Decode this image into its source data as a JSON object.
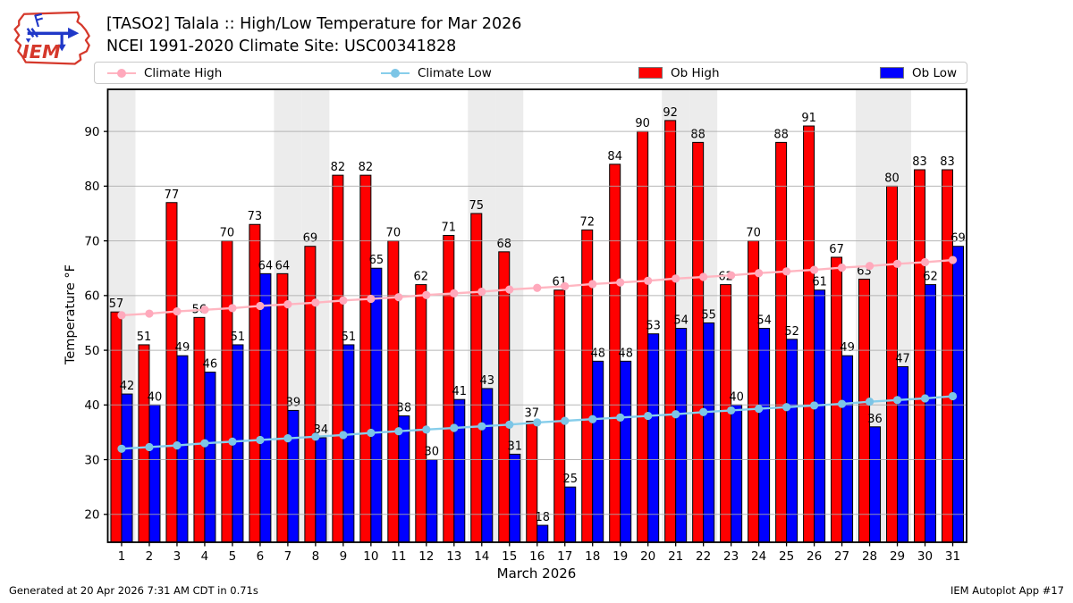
{
  "header": {
    "title_line1": "[TASO2] Talala :: High/Low Temperature for Mar 2026",
    "title_line2": "NCEI 1991-2020 Climate Site: USC00341828",
    "logo_text": "IEM"
  },
  "legend": {
    "items": [
      {
        "label": "Climate High",
        "marker": "line-dot",
        "color": "#ffb6c1"
      },
      {
        "label": "Climate Low",
        "marker": "line-dot",
        "color": "#87ceeb"
      },
      {
        "label": "Ob High",
        "marker": "swatch",
        "color": "#ff0000"
      },
      {
        "label": "Ob Low",
        "marker": "swatch",
        "color": "#0000ff"
      }
    ]
  },
  "footer": {
    "generated": "Generated at 20 Apr 2026 7:31 AM CDT in 0.71s",
    "app": "IEM Autoplot App #17"
  },
  "colors": {
    "ob_high": "#ff0000",
    "ob_low": "#0000ff",
    "climate_high": "#ffb6c1",
    "climate_high_marker": "#ffa9bc",
    "climate_low": "#87ceeb",
    "climate_low_marker": "#7cc5e6",
    "weekend_band": "#ececec",
    "grid": "#ababab",
    "bar_edge": "#000000"
  },
  "chart_data": {
    "type": "bar",
    "title": "[TASO2] Talala :: High/Low Temperature for Mar 2026",
    "subtitle": "NCEI 1991-2020 Climate Site: USC00341828",
    "xlabel": "March 2026",
    "ylabel": "Temperature °F",
    "x": [
      1,
      2,
      3,
      4,
      5,
      6,
      7,
      8,
      9,
      10,
      11,
      12,
      13,
      14,
      15,
      16,
      17,
      18,
      19,
      20,
      21,
      22,
      23,
      24,
      25,
      26,
      27,
      28,
      29,
      30,
      31
    ],
    "yticks": [
      20,
      30,
      40,
      50,
      60,
      70,
      80,
      90
    ],
    "ylim": [
      14.9,
      97.7
    ],
    "grid": true,
    "legend_position": "top",
    "weekend_days": [
      1,
      7,
      8,
      14,
      15,
      21,
      22,
      28,
      29
    ],
    "series": [
      {
        "name": "Ob High",
        "type": "bar",
        "color": "#ff0000",
        "labeled": true,
        "values": [
          57,
          51,
          77,
          56,
          70,
          73,
          64,
          69,
          82,
          82,
          70,
          62,
          71,
          75,
          68,
          37,
          61,
          72,
          84,
          90,
          92,
          88,
          62,
          70,
          88,
          91,
          67,
          63,
          80,
          83,
          83
        ]
      },
      {
        "name": "Ob Low",
        "type": "bar",
        "color": "#0000ff",
        "labeled": true,
        "values": [
          42,
          40,
          49,
          46,
          51,
          64,
          39,
          34,
          51,
          65,
          38,
          30,
          41,
          43,
          31,
          18,
          25,
          48,
          48,
          53,
          54,
          55,
          40,
          54,
          52,
          61,
          49,
          36,
          47,
          62,
          69
        ]
      },
      {
        "name": "Climate High",
        "type": "line",
        "color": "#ffb6c1",
        "marker_color": "#ffa9bc",
        "labeled": false,
        "values": [
          56.4,
          56.7,
          57.1,
          57.4,
          57.7,
          58.1,
          58.4,
          58.7,
          59.1,
          59.4,
          59.7,
          60.1,
          60.4,
          60.7,
          61.1,
          61.4,
          61.7,
          62.1,
          62.4,
          62.7,
          63.1,
          63.4,
          63.7,
          64.1,
          64.4,
          64.7,
          65.1,
          65.4,
          65.8,
          66.1,
          66.5
        ]
      },
      {
        "name": "Climate Low",
        "type": "line",
        "color": "#87ceeb",
        "marker_color": "#7cc5e6",
        "labeled": false,
        "values": [
          32.0,
          32.3,
          32.6,
          33.0,
          33.3,
          33.6,
          33.9,
          34.2,
          34.5,
          34.9,
          35.2,
          35.5,
          35.8,
          36.1,
          36.4,
          36.8,
          37.1,
          37.4,
          37.7,
          38.0,
          38.3,
          38.7,
          39.0,
          39.3,
          39.6,
          39.9,
          40.2,
          40.6,
          40.9,
          41.2,
          41.6
        ]
      }
    ]
  }
}
